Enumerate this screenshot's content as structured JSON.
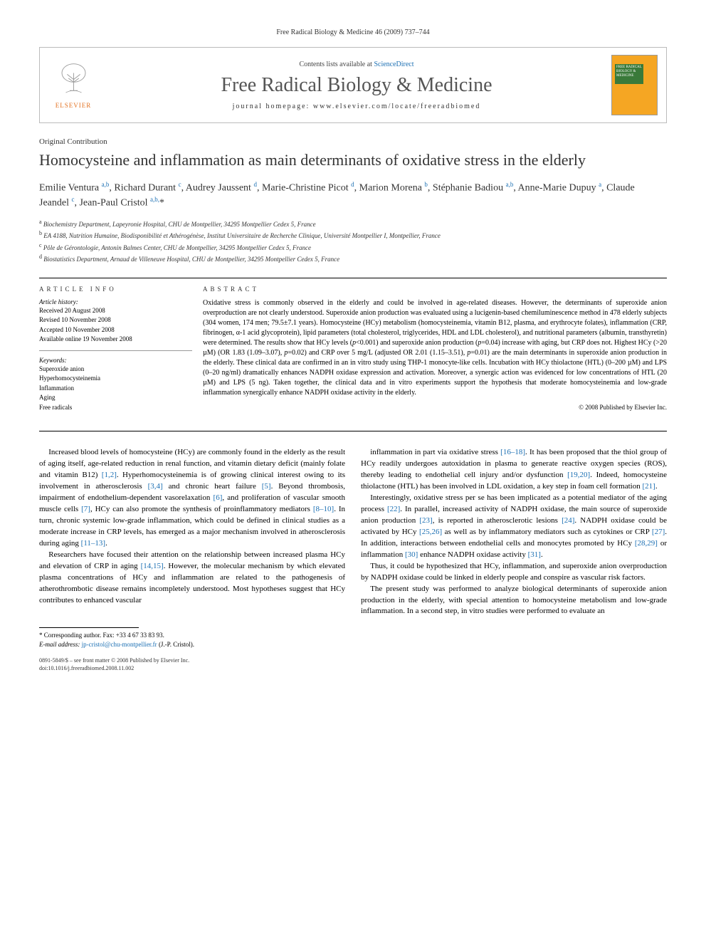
{
  "running_header": "Free Radical Biology & Medicine 46 (2009) 737–744",
  "journal_box": {
    "publisher_name": "ELSEVIER",
    "contents_prefix": "Contents lists available at ",
    "contents_link": "ScienceDirect",
    "journal_title": "Free Radical Biology & Medicine",
    "homepage_prefix": "journal homepage: ",
    "homepage_url": "www.elsevier.com/locate/freeradbiomed",
    "cover_text": "FREE RADICAL BIOLOGY & MEDICINE"
  },
  "section_label": "Original Contribution",
  "article_title": "Homocysteine and inflammation as main determinants of oxidative stress in the elderly",
  "authors_html": "Emilie Ventura <sup>a,b</sup>, Richard Durant <sup>c</sup>, Audrey Jaussent <sup>d</sup>, Marie-Christine Picot <sup>d</sup>, Marion Morena <sup>b</sup>, Stéphanie Badiou <sup>a,b</sup>, Anne-Marie Dupuy <sup>a</sup>, Claude Jeandel <sup>c</sup>, Jean-Paul Cristol <sup>a,b,</sup>*",
  "affiliations": [
    "Biochemistry Department, Lapeyronie Hospital, CHU de Montpellier, 34295 Montpellier Cedex 5, France",
    "EA 4188, Nutrition Humaine, Biodisponibilité et Athérogénèse, Institut Universitaire de Recherche Clinique, Université Montpellier I, Montpellier, France",
    "Pôle de Gérontologie, Antonin Balmes Center, CHU de Montpellier, 34295 Montpellier Cedex 5, France",
    "Biostatistics Department, Arnaud de Villeneuve Hospital, CHU de Montpellier, 34295 Montpellier Cedex 5, France"
  ],
  "affil_markers": [
    "a",
    "b",
    "c",
    "d"
  ],
  "article_info": {
    "heading": "article info",
    "history_label": "Article history:",
    "history": [
      "Received 20 August 2008",
      "Revised 10 November 2008",
      "Accepted 10 November 2008",
      "Available online 19 November 2008"
    ],
    "keywords_label": "Keywords:",
    "keywords": [
      "Superoxide anion",
      "Hyperhomocysteinemia",
      "Inflammation",
      "Aging",
      "Free radicals"
    ]
  },
  "abstract": {
    "heading": "abstract",
    "text": "Oxidative stress is commonly observed in the elderly and could be involved in age-related diseases. However, the determinants of superoxide anion overproduction are not clearly understood. Superoxide anion production was evaluated using a lucigenin-based chemiluminescence method in 478 elderly subjects (304 women, 174 men; 79.5±7.1 years). Homocysteine (HCy) metabolism (homocysteinemia, vitamin B12, plasma, and erythrocyte folates), inflammation (CRP, fibrinogen, α-1 acid glycoprotein), lipid parameters (total cholesterol, triglycerides, HDL and LDL cholesterol), and nutritional parameters (albumin, transthyretin) were determined. The results show that HCy levels (p<0.001) and superoxide anion production (p=0.04) increase with aging, but CRP does not. Highest HCy (>20 µM) (OR 1.83 (1.09–3.07), p=0.02) and CRP over 5 mg/L (adjusted OR 2.01 (1.15–3.51), p=0.01) are the main determinants in superoxide anion production in the elderly. These clinical data are confirmed in an in vitro study using THP-1 monocyte-like cells. Incubation with HCy thiolactone (HTL) (0–200 µM) and LPS (0–20 ng/ml) dramatically enhances NADPH oxidase expression and activation. Moreover, a synergic action was evidenced for low concentrations of HTL (20 µM) and LPS (5 ng). Taken together, the clinical data and in vitro experiments support the hypothesis that moderate homocysteinemia and low-grade inflammation synergically enhance NADPH oxidase activity in the elderly.",
    "copyright": "© 2008 Published by Elsevier Inc."
  },
  "body_paragraphs": [
    "Increased blood levels of homocysteine (HCy) are commonly found in the elderly as the result of aging itself, age-related reduction in renal function, and vitamin dietary deficit (mainly folate and vitamin B12) [1,2]. Hyperhomocysteinemia is of growing clinical interest owing to its involvement in atherosclerosis [3,4] and chronic heart failure [5]. Beyond thrombosis, impairment of endothelium-dependent vasorelaxation [6], and proliferation of vascular smooth muscle cells [7], HCy can also promote the synthesis of proinflammatory mediators [8–10]. In turn, chronic systemic low-grade inflammation, which could be defined in clinical studies as a moderate increase in CRP levels, has emerged as a major mechanism involved in atherosclerosis during aging [11–13].",
    "Researchers have focused their attention on the relationship between increased plasma HCy and elevation of CRP in aging [14,15]. However, the molecular mechanism by which elevated plasma concentrations of HCy and inflammation are related to the pathogenesis of atherothrombotic disease remains incompletely understood. Most hypotheses suggest that HCy contributes to enhanced vascular",
    "inflammation in part via oxidative stress [16–18]. It has been proposed that the thiol group of HCy readily undergoes autoxidation in plasma to generate reactive oxygen species (ROS), thereby leading to endothelial cell injury and/or dysfunction [19,20]. Indeed, homocysteine thiolactone (HTL) has been involved in LDL oxidation, a key step in foam cell formation [21].",
    "Interestingly, oxidative stress per se has been implicated as a potential mediator of the aging process [22]. In parallel, increased activity of NADPH oxidase, the main source of superoxide anion production [23], is reported in atherosclerotic lesions [24]. NADPH oxidase could be activated by HCy [25,26] as well as by inflammatory mediators such as cytokines or CRP [27]. In addition, interactions between endothelial cells and monocytes promoted by HCy [28,29] or inflammation [30] enhance NADPH oxidase activity [31].",
    "Thus, it could be hypothesized that HCy, inflammation, and superoxide anion overproduction by NADPH oxidase could be linked in elderly people and conspire as vascular risk factors.",
    "The present study was performed to analyze biological determinants of superoxide anion production in the elderly, with special attention to homocysteine metabolism and low-grade inflammation. In a second step, in vitro studies were performed to evaluate an"
  ],
  "footnote": {
    "corr_label": "* Corresponding author. Fax: +33 4 67 33 83 93.",
    "email_label": "E-mail address:",
    "email": "jp-cristol@chu-montpellier.fr",
    "email_suffix": "(J.-P. Cristol)."
  },
  "bottom_meta": {
    "line1": "0891-5849/$ – see front matter © 2008 Published by Elsevier Inc.",
    "line2": "doi:10.1016/j.freeradbiomed.2008.11.002"
  },
  "colors": {
    "link": "#1b6fb3",
    "elsevier_orange": "#e37222",
    "cover_bg": "#f5a623",
    "cover_bar": "#3a7a3a",
    "border_gray": "#bbb",
    "text_dark": "#333"
  }
}
